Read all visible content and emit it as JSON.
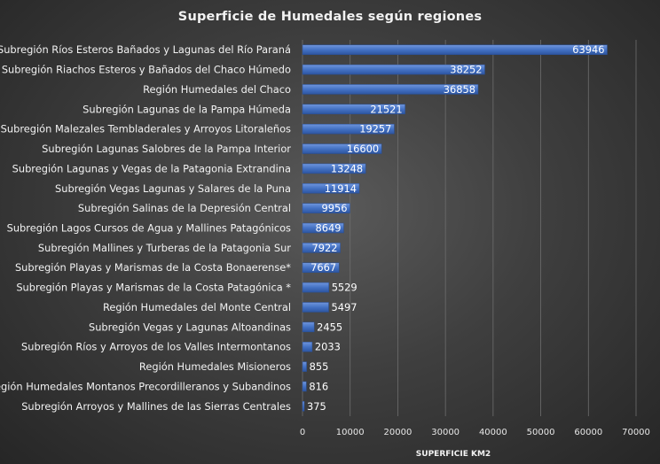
{
  "chart_data": {
    "type": "bar",
    "orientation": "horizontal",
    "title": "Superficie de Humedales según regiones",
    "xlabel": "SUPERFICIE KM2",
    "ylabel": "",
    "xlim": [
      0,
      70000
    ],
    "ticks": [
      0,
      10000,
      20000,
      30000,
      40000,
      50000,
      60000,
      70000
    ],
    "grid": true,
    "bar_color": "#4472c4",
    "categories": [
      "Subregión Ríos Esteros Bañados y Lagunas del Río Paraná",
      "Subregión Riachos Esteros y Bañados del Chaco Húmedo",
      "Región Humedales del Chaco",
      "Subregión Lagunas de la Pampa Húmeda",
      "Subregión Malezales Tembladerales y Arroyos Litoraleños",
      "Subregión Lagunas Salobres de la Pampa Interior",
      "Subregión Lagunas y Vegas de la Patagonia Extrandina",
      "Subregión Vegas Lagunas y Salares de la Puna",
      "Subregión Salinas de la Depresión Central",
      "Subregión Lagos Cursos de Agua y Mallines Patagónicos",
      "Subregión Mallines y Turberas de la Patagonia Sur",
      "Subregión Playas y Marismas de la Costa Bonaerense*",
      "Subregión Playas y Marismas de la Costa Patagónica *",
      "Región Humedales del Monte Central",
      "Subregión Vegas y Lagunas Altoandinas",
      "Subregión Ríos y Arroyos de los Valles Intermontanos",
      "Región Humedales Misioneros",
      "Región Humedales Montanos Precordilleranos y Subandinos",
      "Subregión Arroyos y Mallines de las Sierras Centrales"
    ],
    "values": [
      63946,
      38252,
      36858,
      21521,
      19257,
      16600,
      13248,
      11914,
      9956,
      8649,
      7922,
      7667,
      5529,
      5497,
      2455,
      2033,
      855,
      816,
      375
    ]
  }
}
